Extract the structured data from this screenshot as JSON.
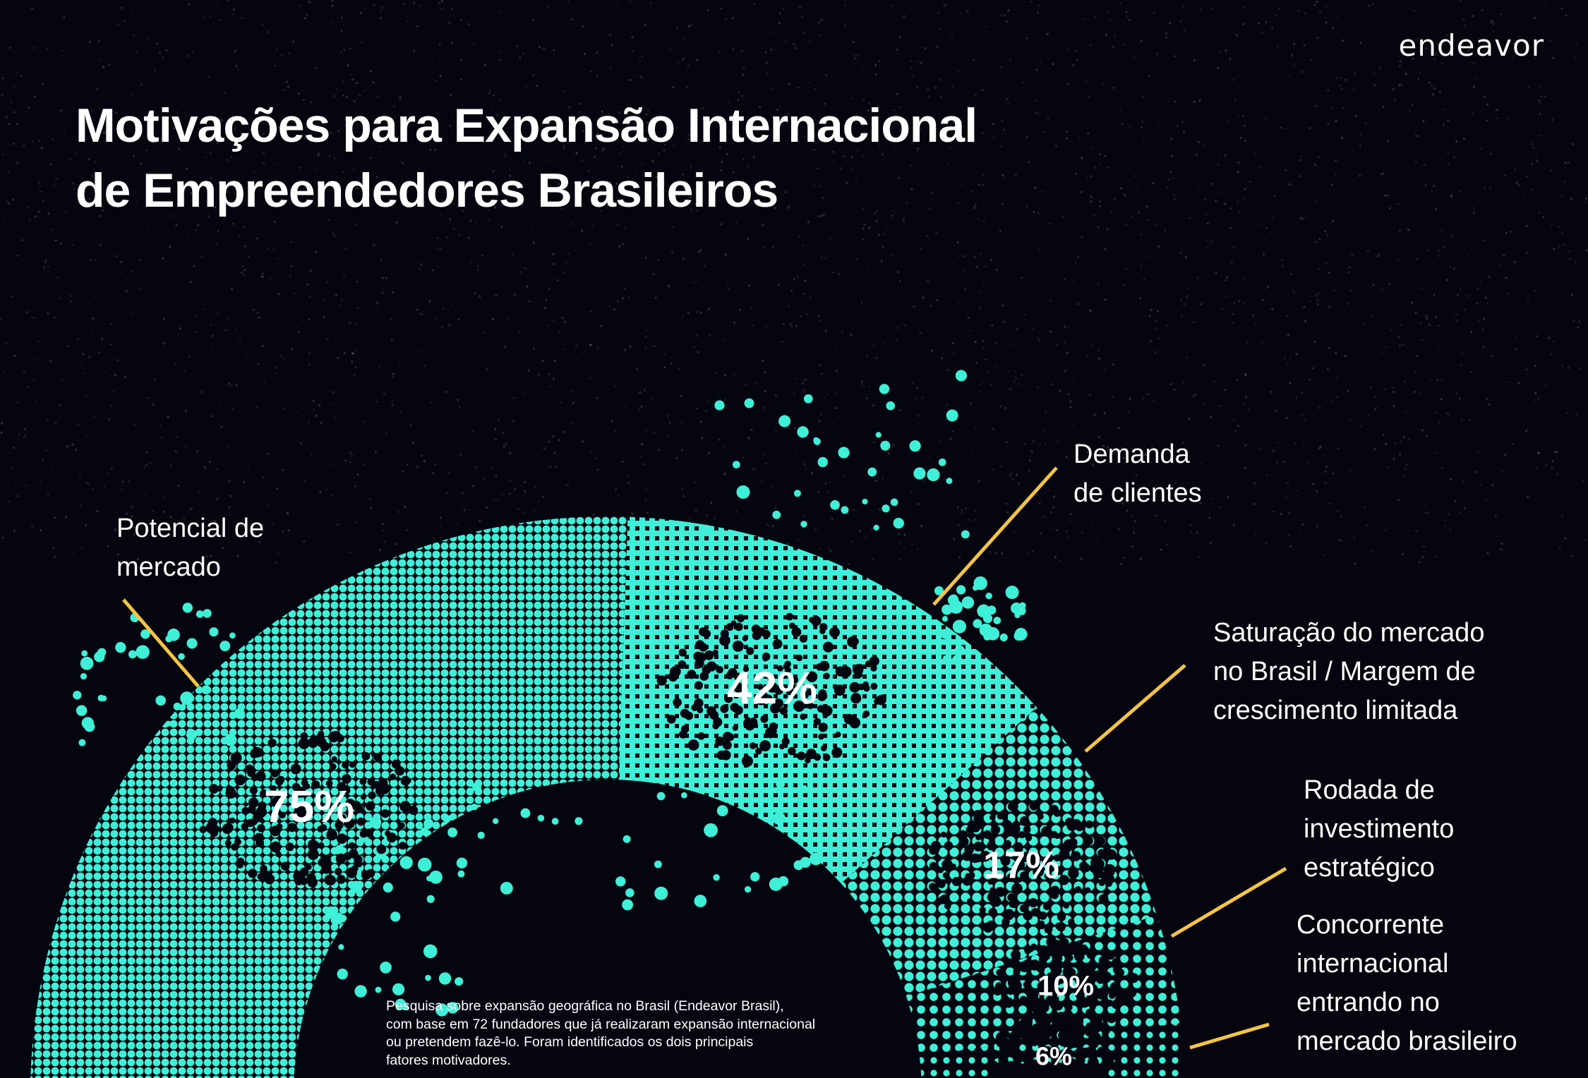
{
  "brand": "endeavor",
  "colors": {
    "background": "#05050f",
    "accent": "#3ef0d8",
    "leader": "#f5c542",
    "text": "#ffffff"
  },
  "chart_data": {
    "type": "pie",
    "variant": "half-donut (dotted)",
    "title": "Motivações para Expansão Internacional\nde Empreendedores Brasileiros",
    "unit": "%",
    "categories": [
      "Potencial de mercado",
      "Demanda de clientes",
      "Saturação do mercado no Brasil / Margem de crescimento limitada",
      "Rodada de investimento estratégico",
      "Concorrente internacional entrando no mercado brasileiro"
    ],
    "values": [
      75,
      42,
      17,
      10,
      6
    ],
    "value_labels": [
      "75%",
      "42%",
      "17%",
      "10%",
      "6%"
    ],
    "labels": [
      "Potencial de\nmercado",
      "Demanda\nde clientes",
      "Saturação do mercado\nno Brasil / Margem de\ncrescimento limitada",
      "Rodada de\ninvestimento\nestratégico",
      "Concorrente\ninternacional\nentrando no\nmercado brasileiro"
    ],
    "note": "Pesquisa sobre expansão geográfica no Brasil (Endeavor Brasil),\ncom base em 72 fundadores que já realizaram expansão internacional\nou pretendem fazê-lo. Foram identificados os dois principais\nfatores motivadores."
  }
}
